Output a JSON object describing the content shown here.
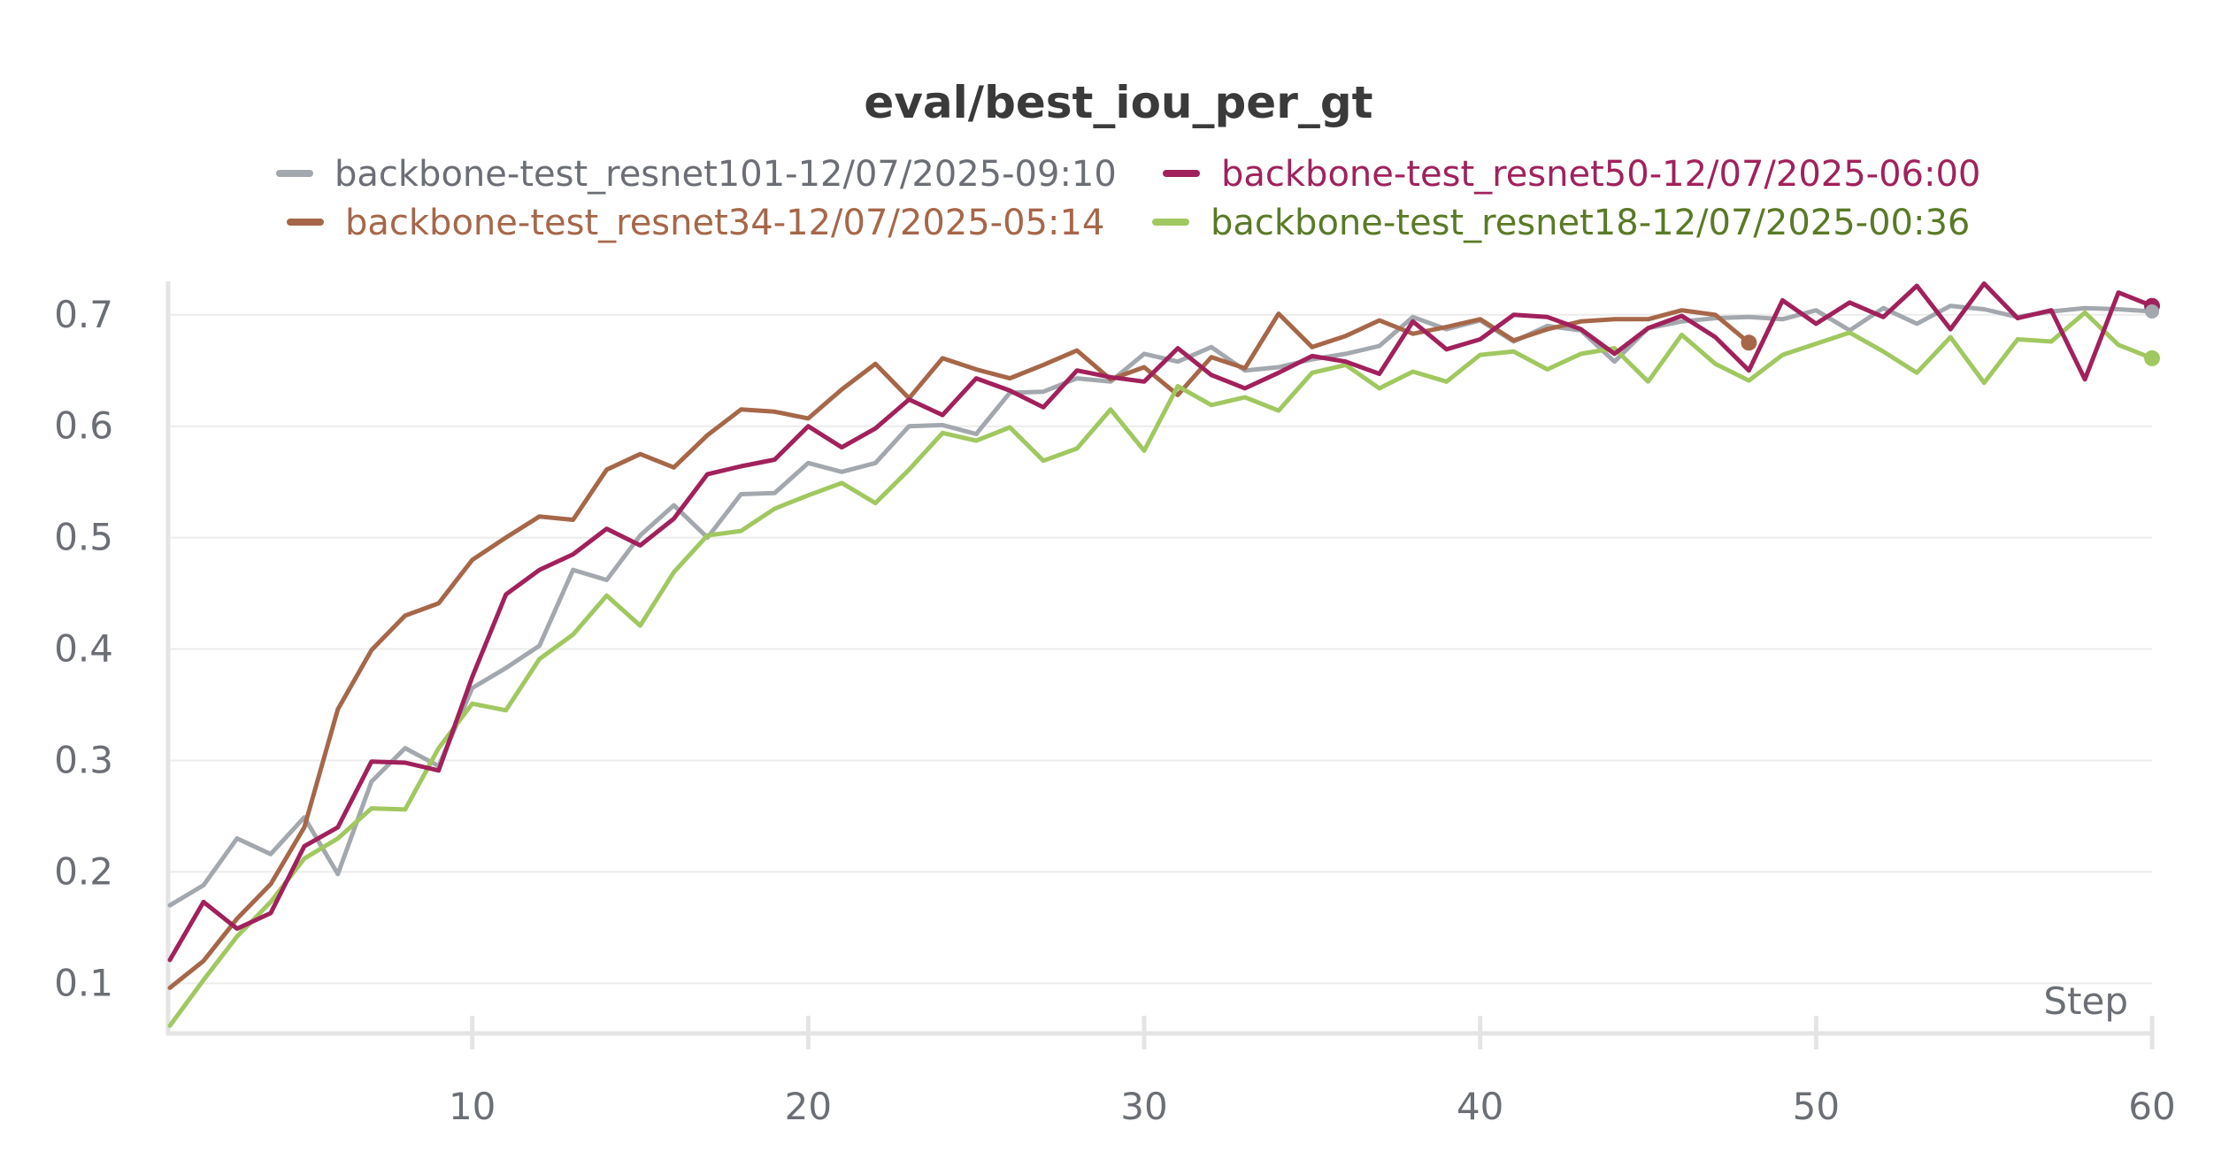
{
  "chart_data": {
    "type": "line",
    "title": "eval/best_iou_per_gt",
    "xlabel": "Step",
    "ylabel": "",
    "xlim": [
      1,
      60
    ],
    "ylim": [
      0.055,
      0.73
    ],
    "x_ticks": [
      10,
      20,
      30,
      40,
      50,
      60
    ],
    "y_ticks": [
      0.1,
      0.2,
      0.3,
      0.4,
      0.5,
      0.6,
      0.7
    ],
    "grid": true,
    "legend_position": "top",
    "series": [
      {
        "name": "backbone-test_resnet101-12/07/2025-09:10",
        "color": "#a3a8ae",
        "text_color": "#6b6f75",
        "x": [
          1,
          2,
          3,
          4,
          5,
          6,
          7,
          8,
          9,
          10,
          11,
          12,
          13,
          14,
          15,
          16,
          17,
          18,
          19,
          20,
          21,
          22,
          23,
          24,
          25,
          26,
          27,
          28,
          29,
          30,
          31,
          32,
          33,
          34,
          35,
          36,
          37,
          38,
          39,
          40,
          41,
          42,
          43,
          44,
          45,
          46,
          47,
          48,
          49,
          50,
          51,
          52,
          53,
          54,
          55,
          56,
          57,
          58,
          59,
          60
        ],
        "values": [
          0.17,
          0.188,
          0.23,
          0.216,
          0.249,
          0.198,
          0.281,
          0.311,
          0.295,
          0.365,
          0.383,
          0.403,
          0.471,
          0.462,
          0.502,
          0.529,
          0.5,
          0.539,
          0.54,
          0.567,
          0.559,
          0.567,
          0.6,
          0.601,
          0.593,
          0.63,
          0.631,
          0.643,
          0.64,
          0.665,
          0.658,
          0.671,
          0.65,
          0.653,
          0.66,
          0.665,
          0.672,
          0.698,
          0.687,
          0.695,
          0.676,
          0.69,
          0.686,
          0.658,
          0.688,
          0.694,
          0.697,
          0.698,
          0.696,
          0.704,
          0.686,
          0.706,
          0.692,
          0.708,
          0.705,
          0.698,
          0.703,
          0.706,
          0.705,
          0.703
        ]
      },
      {
        "name": "backbone-test_resnet50-12/07/2025-06:00",
        "color": "#a1215c",
        "text_color": "#a1215c",
        "x": [
          1,
          2,
          3,
          4,
          5,
          6,
          7,
          8,
          9,
          10,
          11,
          12,
          13,
          14,
          15,
          16,
          17,
          18,
          19,
          20,
          21,
          22,
          23,
          24,
          25,
          26,
          27,
          28,
          29,
          30,
          31,
          32,
          33,
          34,
          35,
          36,
          37,
          38,
          39,
          40,
          41,
          42,
          43,
          44,
          45,
          46,
          47,
          48,
          49,
          50,
          51,
          52,
          53,
          54,
          55,
          56,
          57,
          58,
          59,
          60
        ],
        "values": [
          0.121,
          0.173,
          0.149,
          0.163,
          0.223,
          0.24,
          0.299,
          0.298,
          0.291,
          0.375,
          0.449,
          0.471,
          0.485,
          0.508,
          0.493,
          0.517,
          0.557,
          0.564,
          0.57,
          0.6,
          0.581,
          0.598,
          0.624,
          0.61,
          0.643,
          0.632,
          0.617,
          0.65,
          0.644,
          0.64,
          0.67,
          0.646,
          0.634,
          0.648,
          0.663,
          0.658,
          0.647,
          0.694,
          0.669,
          0.678,
          0.7,
          0.698,
          0.687,
          0.665,
          0.688,
          0.699,
          0.68,
          0.65,
          0.713,
          0.692,
          0.711,
          0.698,
          0.726,
          0.687,
          0.728,
          0.697,
          0.704,
          0.642,
          0.72,
          0.708
        ]
      },
      {
        "name": "backbone-test_resnet34-12/07/2025-05:14",
        "color": "#a66749",
        "text_color": "#a66749",
        "x": [
          1,
          2,
          3,
          4,
          5,
          6,
          7,
          8,
          9,
          10,
          11,
          12,
          13,
          14,
          15,
          16,
          17,
          18,
          19,
          20,
          21,
          22,
          23,
          24,
          25,
          26,
          27,
          28,
          29,
          30,
          31,
          32,
          33,
          34,
          35,
          36,
          37,
          38,
          39,
          40,
          41,
          42,
          43,
          44,
          45,
          46,
          47,
          48
        ],
        "values": [
          0.096,
          0.12,
          0.158,
          0.189,
          0.24,
          0.346,
          0.399,
          0.43,
          0.441,
          0.48,
          0.5,
          0.519,
          0.516,
          0.561,
          0.575,
          0.563,
          0.592,
          0.615,
          0.613,
          0.607,
          0.633,
          0.656,
          0.625,
          0.661,
          0.651,
          0.643,
          0.655,
          0.668,
          0.642,
          0.653,
          0.628,
          0.662,
          0.652,
          0.701,
          0.671,
          0.681,
          0.695,
          0.683,
          0.689,
          0.696,
          0.677,
          0.687,
          0.694,
          0.696,
          0.696,
          0.704,
          0.7,
          0.675
        ]
      },
      {
        "name": "backbone-test_resnet18-12/07/2025-00:36",
        "color": "#a1c860",
        "text_color": "#5a7a26",
        "x": [
          1,
          2,
          3,
          4,
          5,
          6,
          7,
          8,
          9,
          10,
          11,
          12,
          13,
          14,
          15,
          16,
          17,
          18,
          19,
          20,
          21,
          22,
          23,
          24,
          25,
          26,
          27,
          28,
          29,
          30,
          31,
          32,
          33,
          34,
          35,
          36,
          37,
          38,
          39,
          40,
          41,
          42,
          43,
          44,
          45,
          46,
          47,
          48,
          49,
          50,
          51,
          52,
          53,
          54,
          55,
          56,
          57,
          58,
          59,
          60
        ],
        "values": [
          0.062,
          0.103,
          0.142,
          0.173,
          0.212,
          0.23,
          0.257,
          0.256,
          0.311,
          0.351,
          0.345,
          0.391,
          0.413,
          0.448,
          0.421,
          0.469,
          0.502,
          0.506,
          0.526,
          0.538,
          0.549,
          0.531,
          0.561,
          0.594,
          0.587,
          0.599,
          0.569,
          0.58,
          0.615,
          0.578,
          0.636,
          0.619,
          0.626,
          0.614,
          0.648,
          0.655,
          0.634,
          0.649,
          0.64,
          0.664,
          0.667,
          0.651,
          0.665,
          0.67,
          0.64,
          0.682,
          0.656,
          0.641,
          0.664,
          0.674,
          0.684,
          0.667,
          0.648,
          0.68,
          0.639,
          0.678,
          0.676,
          0.702,
          0.673,
          0.661
        ]
      }
    ]
  }
}
